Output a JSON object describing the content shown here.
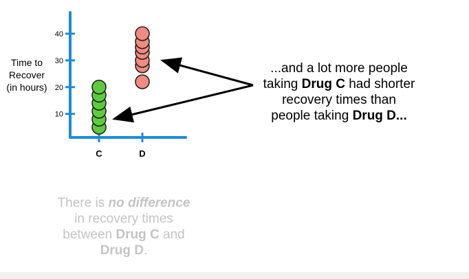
{
  "chart_data": {
    "type": "scatter",
    "ylabel_lines": [
      "Time to",
      "Recover",
      "(in hours)"
    ],
    "categories": [
      "C",
      "D"
    ],
    "y_ticks": [
      10,
      20,
      30,
      40
    ],
    "ylim": [
      2,
      46
    ],
    "series": [
      {
        "category": "C",
        "color": "#5ccc3c",
        "values": [
          5,
          8,
          11,
          14,
          17,
          20
        ]
      },
      {
        "category": "D",
        "color": "#f28a80",
        "values": [
          22,
          28,
          30,
          33,
          35,
          37,
          40
        ]
      }
    ]
  },
  "annotation": {
    "line1": "...and a lot more people",
    "line2_pre": "taking ",
    "line2_bold": "Drug C",
    "line2_post": " had shorter",
    "line3": "recovery times than",
    "line4_pre": "people taking ",
    "line4_bold": "Drug D..."
  },
  "null_hypothesis": {
    "line1_pre": "There is ",
    "line1_bold": "no difference",
    "line2": "in recovery times",
    "line3_pre": "between ",
    "line3_bold": "Drug C",
    "line3_post": " and",
    "line4_bold": "Drug D",
    "line4_post": "."
  },
  "colors": {
    "axis": "#1a8cd8",
    "drug_c": "#5ccc3c",
    "drug_d": "#f28a80",
    "null_text": "#c4c4c4"
  }
}
